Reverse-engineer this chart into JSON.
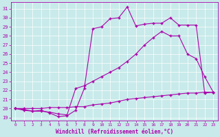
{
  "xlabel": "Windchill (Refroidissement éolien,°C)",
  "bg_color": "#c8eaea",
  "line_color": "#aa00aa",
  "grid_color": "#b0d4d4",
  "xlim": [
    -0.5,
    23.5
  ],
  "ylim": [
    18.7,
    31.7
  ],
  "yticks": [
    19,
    20,
    21,
    22,
    23,
    24,
    25,
    26,
    27,
    28,
    29,
    30,
    31
  ],
  "xticks": [
    0,
    1,
    2,
    3,
    4,
    5,
    6,
    7,
    8,
    9,
    10,
    11,
    12,
    13,
    14,
    15,
    16,
    17,
    18,
    19,
    20,
    21,
    22,
    23
  ],
  "line1_x": [
    0,
    1,
    2,
    3,
    4,
    5,
    6,
    7,
    8,
    9,
    10,
    11,
    12,
    13,
    14,
    15,
    16,
    17,
    18,
    19,
    20,
    21,
    22,
    23
  ],
  "line1_y": [
    20.0,
    19.8,
    19.7,
    19.8,
    19.5,
    19.1,
    19.2,
    19.8,
    22.2,
    28.8,
    29.0,
    29.9,
    30.0,
    31.2,
    29.1,
    29.3,
    29.4,
    29.4,
    30.0,
    29.2,
    29.2,
    29.2,
    21.7,
    21.8
  ],
  "line2_x": [
    0,
    1,
    2,
    3,
    4,
    5,
    6,
    7,
    8,
    9,
    10,
    11,
    12,
    13,
    14,
    15,
    16,
    17,
    18,
    19,
    20,
    21,
    22,
    23
  ],
  "line2_y": [
    20.0,
    19.9,
    19.7,
    19.7,
    19.6,
    19.4,
    19.3,
    22.2,
    22.5,
    23.0,
    23.5,
    24.0,
    24.5,
    25.2,
    26.0,
    27.0,
    27.8,
    28.5,
    28.0,
    28.0,
    26.0,
    25.5,
    23.5,
    21.8
  ],
  "line3_x": [
    0,
    1,
    2,
    3,
    4,
    5,
    6,
    7,
    8,
    9,
    10,
    11,
    12,
    13,
    14,
    15,
    16,
    17,
    18,
    19,
    20,
    21,
    22,
    23
  ],
  "line3_y": [
    20.0,
    20.0,
    20.0,
    20.0,
    20.1,
    20.1,
    20.1,
    20.2,
    20.2,
    20.4,
    20.5,
    20.6,
    20.8,
    21.0,
    21.1,
    21.2,
    21.3,
    21.4,
    21.5,
    21.6,
    21.7,
    21.7,
    21.8,
    21.8
  ]
}
